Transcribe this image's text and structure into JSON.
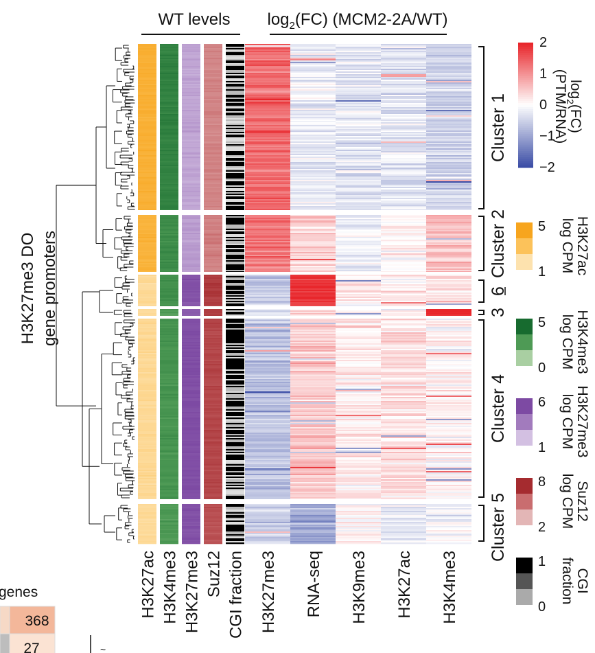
{
  "chart_data": {
    "type": "heatmap",
    "title": "H3K27me3 DO gene promoters",
    "row_label": "H3K27me3 DO gene promoters",
    "groups": [
      {
        "name": "WT levels",
        "columns": [
          "H3K27ac",
          "H3K4me3",
          "H3K27me3",
          "Suz12",
          "CGI fraction"
        ]
      },
      {
        "name": "log2(FC) (MCM2-2A/WT)",
        "columns": [
          "H3K27me3",
          "RNA-seq",
          "H3K9me3",
          "H3K27ac",
          "H3K4me3"
        ]
      }
    ],
    "group_title_1": "WT levels",
    "group_title_2": {
      "prefix": "log",
      "sub": "2",
      "suffix": "(FC) (MCM2-2A/WT)"
    },
    "wt_columns": [
      "H3K27ac",
      "H3K4me3",
      "H3K27me3",
      "Suz12",
      "CGI fraction"
    ],
    "fc_columns": [
      "H3K27me3",
      "RNA-seq",
      "H3K9me3",
      "H3K27ac",
      "H3K4me3"
    ],
    "clusters": [
      {
        "label": "Cluster 1",
        "fc_means": [
          1.4,
          -0.2,
          -0.3,
          -0.3,
          -0.5
        ],
        "wt_means": [
          4.2,
          3.8,
          2.0,
          4.0,
          0.5
        ]
      },
      {
        "label": "Cluster 2",
        "fc_means": [
          1.3,
          0.4,
          -0.1,
          0.1,
          0.6
        ],
        "wt_means": [
          4.0,
          3.3,
          2.3,
          4.3,
          0.5
        ]
      },
      {
        "label": "6",
        "fc_means": [
          -0.6,
          1.9,
          0.1,
          0.1,
          0.3
        ],
        "wt_means": [
          1.5,
          3.0,
          5.6,
          7.2,
          0.6
        ]
      },
      {
        "label": "3",
        "fc_means": [
          -0.4,
          0.3,
          0.0,
          0.1,
          2.0
        ],
        "wt_means": [
          1.5,
          2.5,
          5.0,
          7.0,
          0.6
        ]
      },
      {
        "label": "Cluster 4",
        "fc_means": [
          -0.7,
          0.5,
          0.2,
          0.3,
          0.1
        ],
        "wt_means": [
          1.6,
          2.8,
          5.8,
          6.8,
          0.6
        ]
      },
      {
        "label": "Cluster 5",
        "fc_means": [
          -0.6,
          -1.0,
          0.1,
          -0.2,
          -0.1
        ],
        "wt_means": [
          1.5,
          2.6,
          5.6,
          6.2,
          0.5
        ]
      }
    ],
    "legends": [
      {
        "title_lines": [
          "log2(FC)",
          "(PTM/RNA)"
        ],
        "title_main": "log",
        "title_sub": "2",
        "title_rest": "(FC)",
        "title_line2": "(PTM/RNA)",
        "ticks": [
          "2",
          "1",
          "0",
          "−1",
          "−2"
        ],
        "range": [
          -2,
          2
        ],
        "colors": [
          "#e8262b",
          "#ffffff",
          "#3c4ea6"
        ]
      },
      {
        "title_lines": [
          "H3K27ac",
          "log CPM"
        ],
        "ticks": [
          "5",
          "1"
        ],
        "range": [
          1,
          5
        ],
        "colors": [
          "#f7a51e",
          "#fcc25a",
          "#fde2ae"
        ]
      },
      {
        "title_lines": [
          "H3K4me3",
          "log CPM"
        ],
        "ticks": [
          "5",
          "0"
        ],
        "range": [
          0,
          5
        ],
        "colors": [
          "#176b2f",
          "#4e9a55",
          "#a9cfa2"
        ]
      },
      {
        "title_lines": [
          "H3K27me3",
          "log CPM"
        ],
        "ticks": [
          "6",
          "1"
        ],
        "range": [
          1,
          6
        ],
        "colors": [
          "#7d4aa3",
          "#a27bbd",
          "#d3c0e2"
        ]
      },
      {
        "title_lines": [
          "Suz12",
          "log CPM"
        ],
        "ticks": [
          "8",
          "2"
        ],
        "range": [
          2,
          8
        ],
        "colors": [
          "#a52b2f",
          "#c96d6f",
          "#e3b6b6"
        ]
      },
      {
        "title_lines": [
          "CGI",
          "fraction"
        ],
        "ticks": [
          "1",
          "0"
        ],
        "range": [
          0,
          1
        ],
        "colors": [
          "#000000",
          "#555555",
          "#aaaaaa"
        ]
      }
    ],
    "inset_title": "genes",
    "inset_values": [
      "368",
      "27"
    ]
  }
}
